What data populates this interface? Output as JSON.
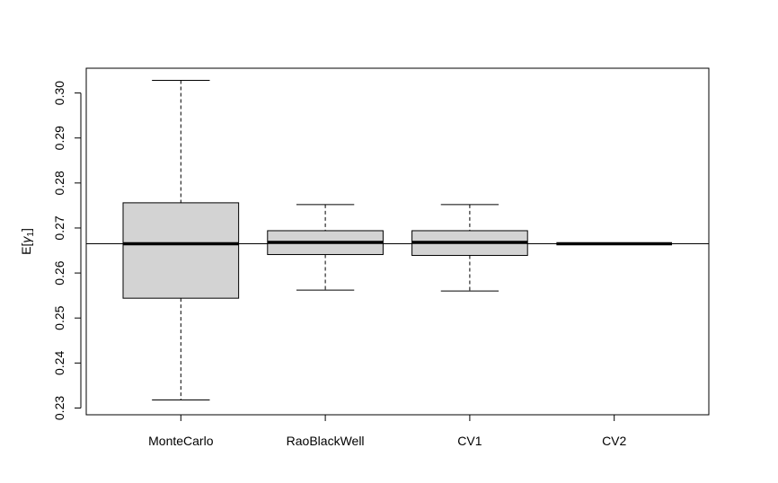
{
  "chart_data": {
    "type": "boxplot",
    "title": "",
    "xlabel": "",
    "ylabel": "E[γ1]",
    "ylabel_main": "E[",
    "ylabel_sym": "γ",
    "ylabel_sub": "1",
    "ylabel_close": "]",
    "ylim": [
      0.2285,
      0.3055
    ],
    "yticks": [
      0.23,
      0.24,
      0.25,
      0.26,
      0.27,
      0.28,
      0.29,
      0.3
    ],
    "ytick_labels": [
      "0.23",
      "0.24",
      "0.25",
      "0.26",
      "0.27",
      "0.28",
      "0.29",
      "0.30"
    ],
    "categories": [
      "MonteCarlo",
      "RaoBlackWell",
      "CV1",
      "CV2"
    ],
    "boxes": [
      {
        "whisker_low": 0.2318,
        "q1": 0.2544,
        "median": 0.2665,
        "q3": 0.2756,
        "whisker_high": 0.3028
      },
      {
        "whisker_low": 0.2562,
        "q1": 0.2641,
        "median": 0.2668,
        "q3": 0.2694,
        "whisker_high": 0.2752
      },
      {
        "whisker_low": 0.256,
        "q1": 0.2639,
        "median": 0.2668,
        "q3": 0.2694,
        "whisker_high": 0.2752
      },
      {
        "whisker_low": 0.2665,
        "q1": 0.2665,
        "median": 0.2665,
        "q3": 0.2665,
        "whisker_high": 0.2665
      }
    ],
    "reference_line": 0.2665,
    "box_fill": "#d3d3d3",
    "line_color": "#000000",
    "grid": false
  }
}
